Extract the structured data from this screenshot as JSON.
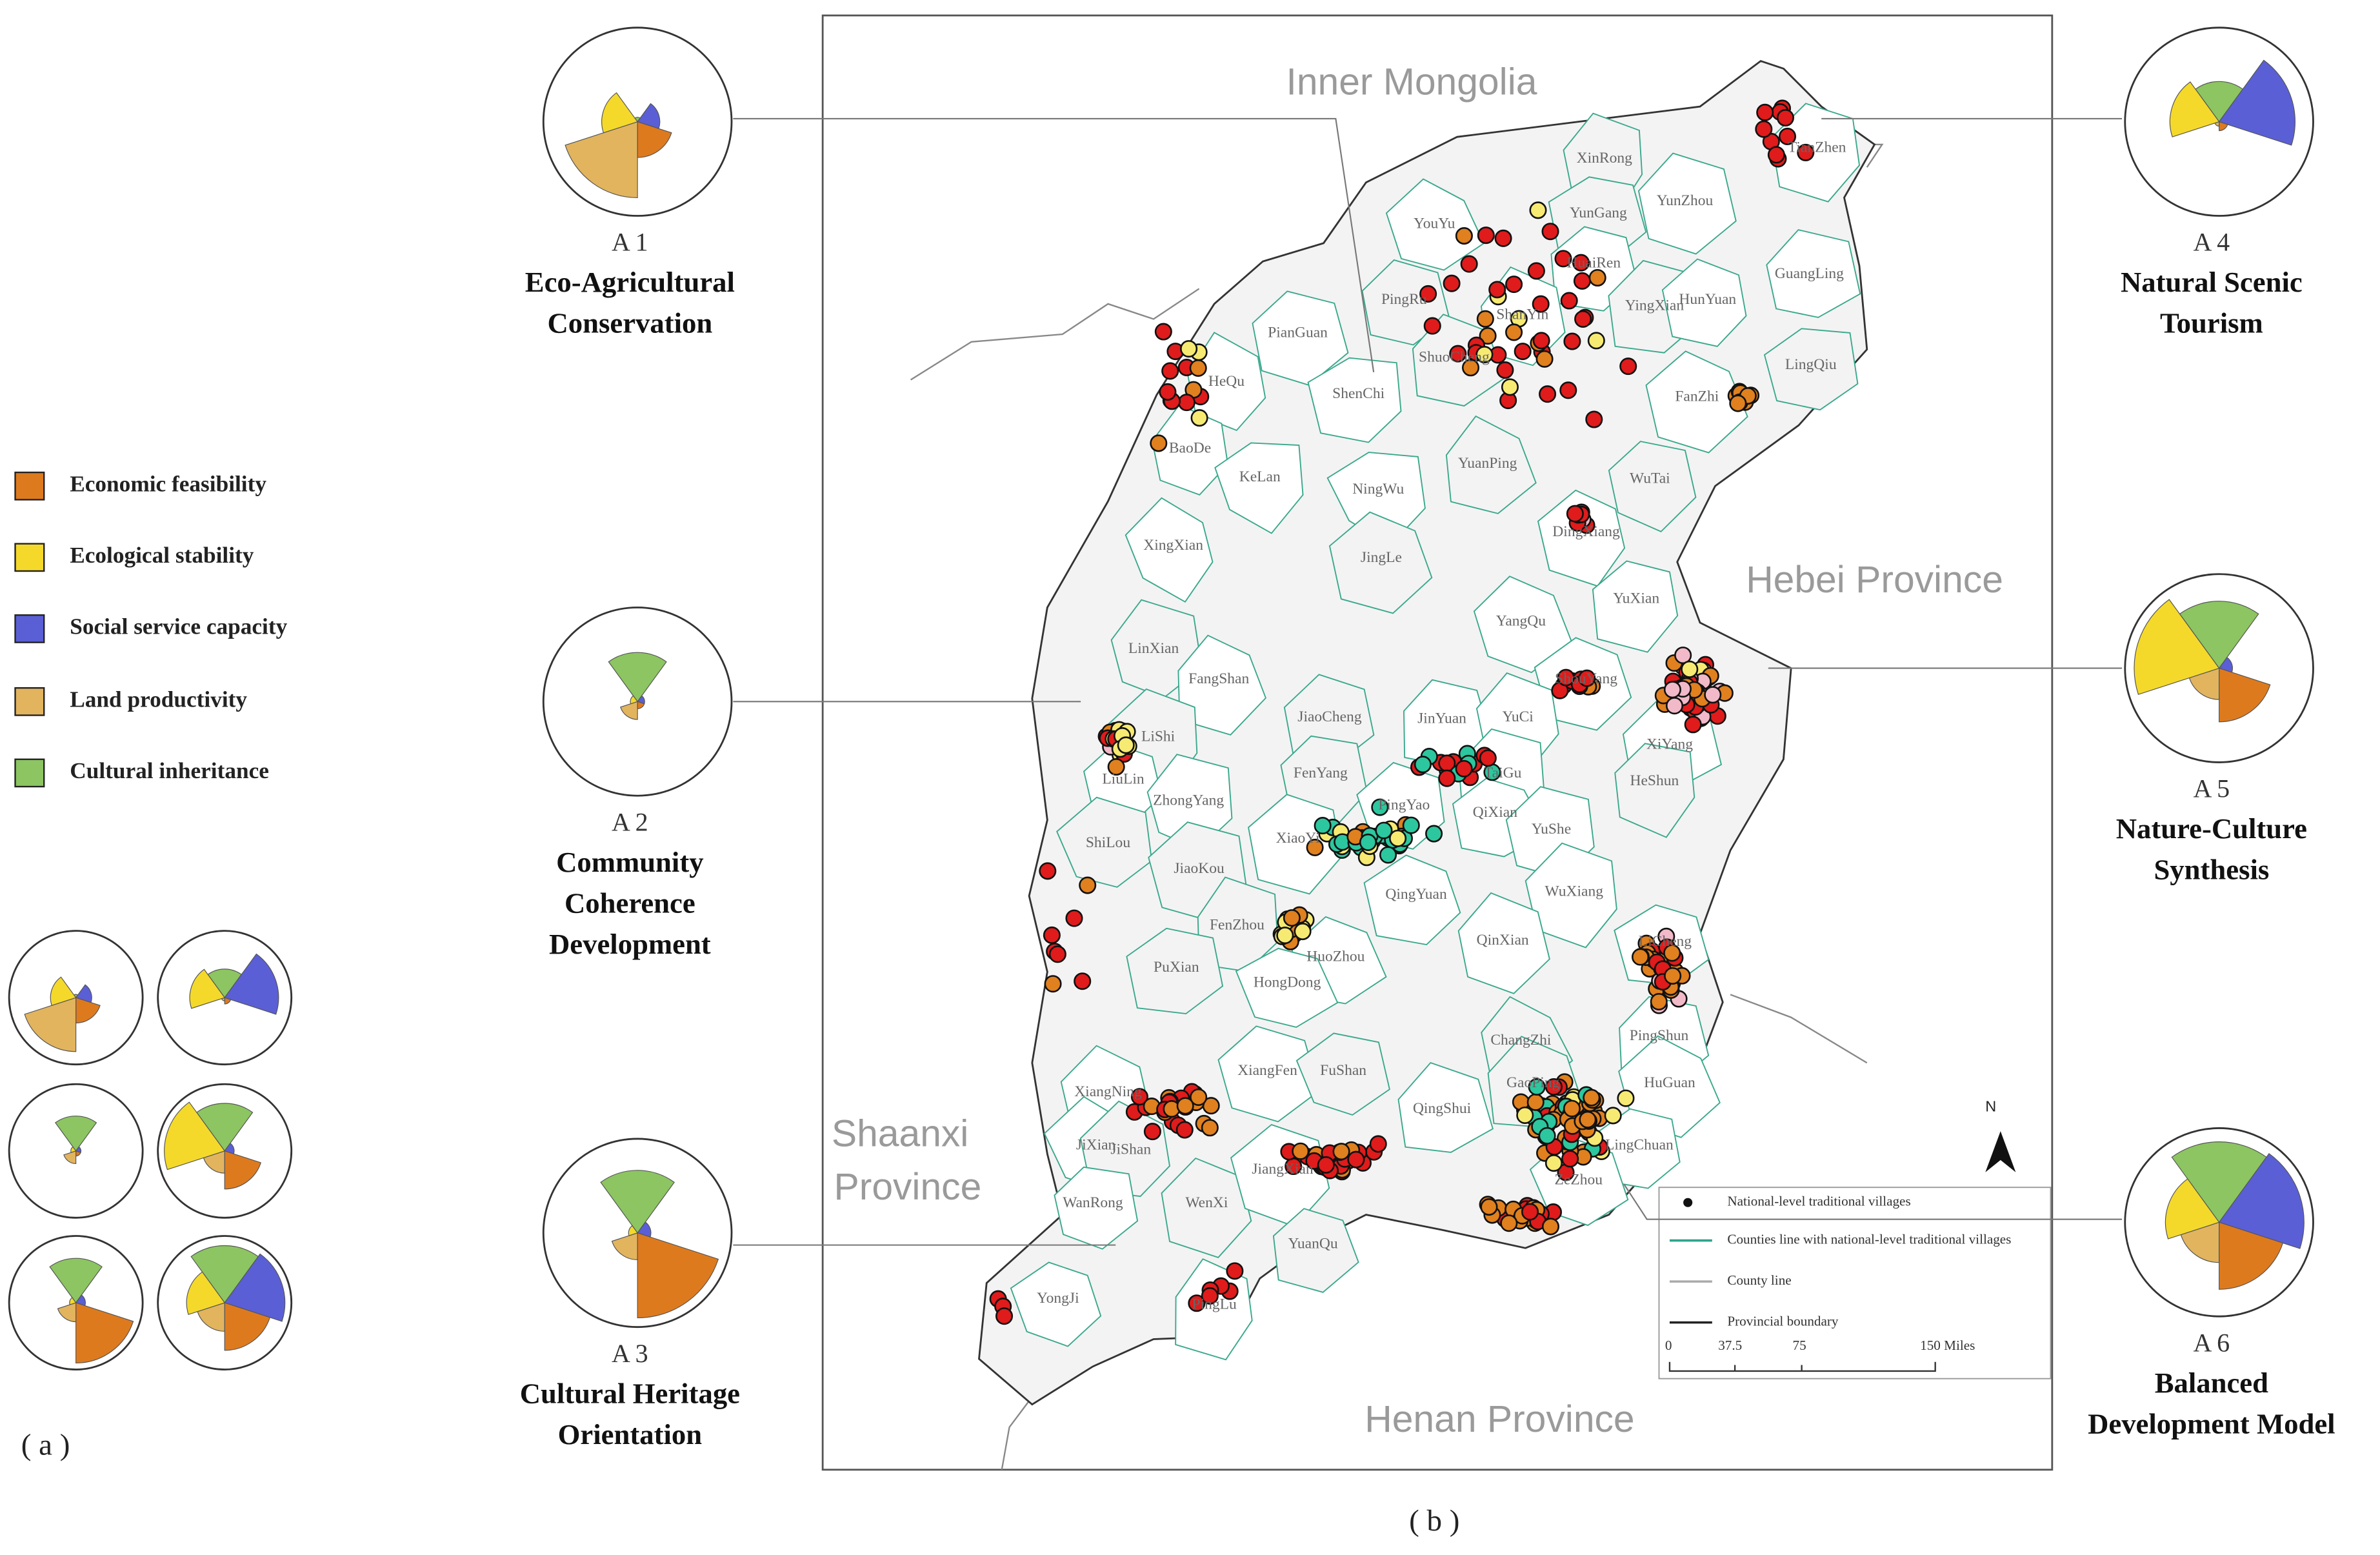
{
  "legend": {
    "items": [
      {
        "label": "Economic feasibility",
        "color": "#de7a1e"
      },
      {
        "label": "Ecological stability",
        "color": "#f4d92a"
      },
      {
        "label": "Social service capacity",
        "color": "#5a5fd6"
      },
      {
        "label": "Land productivity",
        "color": "#e2b45e"
      },
      {
        "label": "Cultural inheritance",
        "color": "#8cc561"
      }
    ]
  },
  "modes": [
    {
      "id": "A 1",
      "name": [
        "Eco-Agricultural",
        "Conservation"
      ]
    },
    {
      "id": "A 2",
      "name": [
        "Community",
        "Coherence",
        "Development"
      ]
    },
    {
      "id": "A 3",
      "name": [
        "Cultural Heritage",
        "Orientation"
      ]
    },
    {
      "id": "A 4",
      "name": [
        "Natural Scenic",
        "Tourism"
      ]
    },
    {
      "id": "A 5",
      "name": [
        "Nature-Culture",
        "Synthesis"
      ]
    },
    {
      "id": "A 6",
      "name": [
        "Balanced",
        "Development Model"
      ]
    }
  ],
  "panel_labels": [
    "( a )",
    "( b )"
  ],
  "map": {
    "regions": {
      "north": "Inner Mongolia",
      "east": "Hebei Province",
      "west": [
        "Shaanxi",
        "Province"
      ],
      "south": "Henan Province"
    },
    "counties": [
      "XinRong",
      "TianZhen",
      "YouYu",
      "YunGang",
      "YunZhou",
      "HuaiRen",
      "YingXian",
      "HunYuan",
      "GuangLing",
      "PingRu",
      "ShanYin",
      "PianGuan",
      "ShuoCheng",
      "ShenChi",
      "HeQu",
      "LingQiu",
      "FanZhi",
      "BaoDe",
      "YuanPing",
      "KeLan",
      "NingWu",
      "WuTai",
      "DingXiang",
      "XingXian",
      "JingLe",
      "YuXian",
      "YangQu",
      "LinXian",
      "FangShan",
      "ShouYang",
      "JiaoCheng",
      "JinYuan",
      "YuCi",
      "LiShi",
      "XiYang",
      "LiuLin",
      "FenYang",
      "TaiGu",
      "ZhongYang",
      "HeShun",
      "PingYao",
      "QiXian",
      "ShiLou",
      "XiaoYi",
      "YuShe",
      "JiaoKou",
      "QingYuan",
      "WuXiang",
      "FenZhou",
      "QinXian",
      "HuoZhou",
      "PuXian",
      "HongDong",
      "LiCheng",
      "ChangZhi",
      "PingShun",
      "XiangFen",
      "FuShan",
      "XiangNing",
      "QingShui",
      "GaoPing",
      "HuGuan",
      "JiXian",
      "JiShan",
      "LingChuan",
      "WanRong",
      "WenXi",
      "JiangXian",
      "ZeZhou",
      "YuanQu",
      "YongJi",
      "PingLu"
    ],
    "north_arrow": "N",
    "legend": [
      "National-level traditional villages",
      "Counties line with national-level traditional villages",
      "County line",
      "Provincial boundary"
    ],
    "scale": [
      "0",
      "37.5",
      "75",
      "150 Miles"
    ]
  }
}
